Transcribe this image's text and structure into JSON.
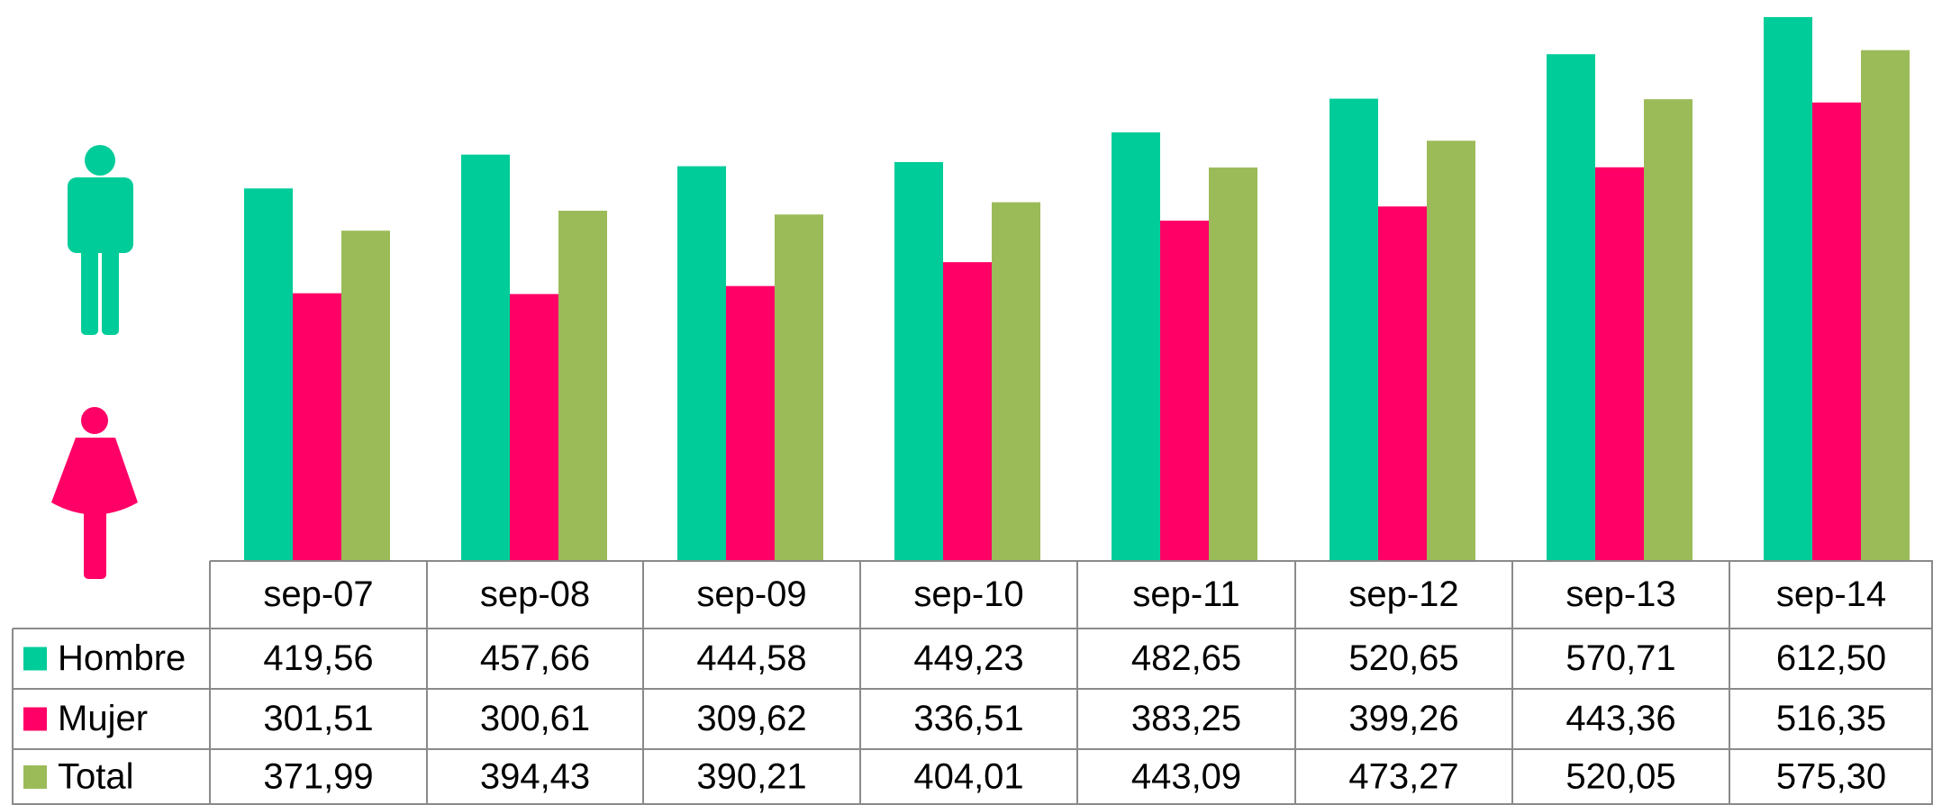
{
  "chart_data": {
    "type": "bar",
    "categories": [
      "sep-07",
      "sep-08",
      "sep-09",
      "sep-10",
      "sep-11",
      "sep-12",
      "sep-13",
      "sep-14"
    ],
    "series": [
      {
        "name": "Hombre",
        "color": "#00cc99",
        "values": [
          419.56,
          457.66,
          444.58,
          449.23,
          482.65,
          520.65,
          570.71,
          612.5
        ],
        "value_labels": [
          "419,56",
          "457,66",
          "444,58",
          "449,23",
          "482,65",
          "520,65",
          "570,71",
          "612,50"
        ]
      },
      {
        "name": "Mujer",
        "color": "#ff0066",
        "values": [
          301.51,
          300.61,
          309.62,
          336.51,
          383.25,
          399.26,
          443.36,
          516.35
        ],
        "value_labels": [
          "301,51",
          "300,61",
          "309,62",
          "336,51",
          "383,25",
          "399,26",
          "443,36",
          "516,35"
        ]
      },
      {
        "name": "Total",
        "color": "#9bbb59",
        "values": [
          371.99,
          394.43,
          390.21,
          404.01,
          443.09,
          473.27,
          520.05,
          575.3
        ],
        "value_labels": [
          "371,99",
          "394,43",
          "390,21",
          "404,01",
          "443,09",
          "473,27",
          "520,05",
          "575,30"
        ]
      }
    ]
  }
}
